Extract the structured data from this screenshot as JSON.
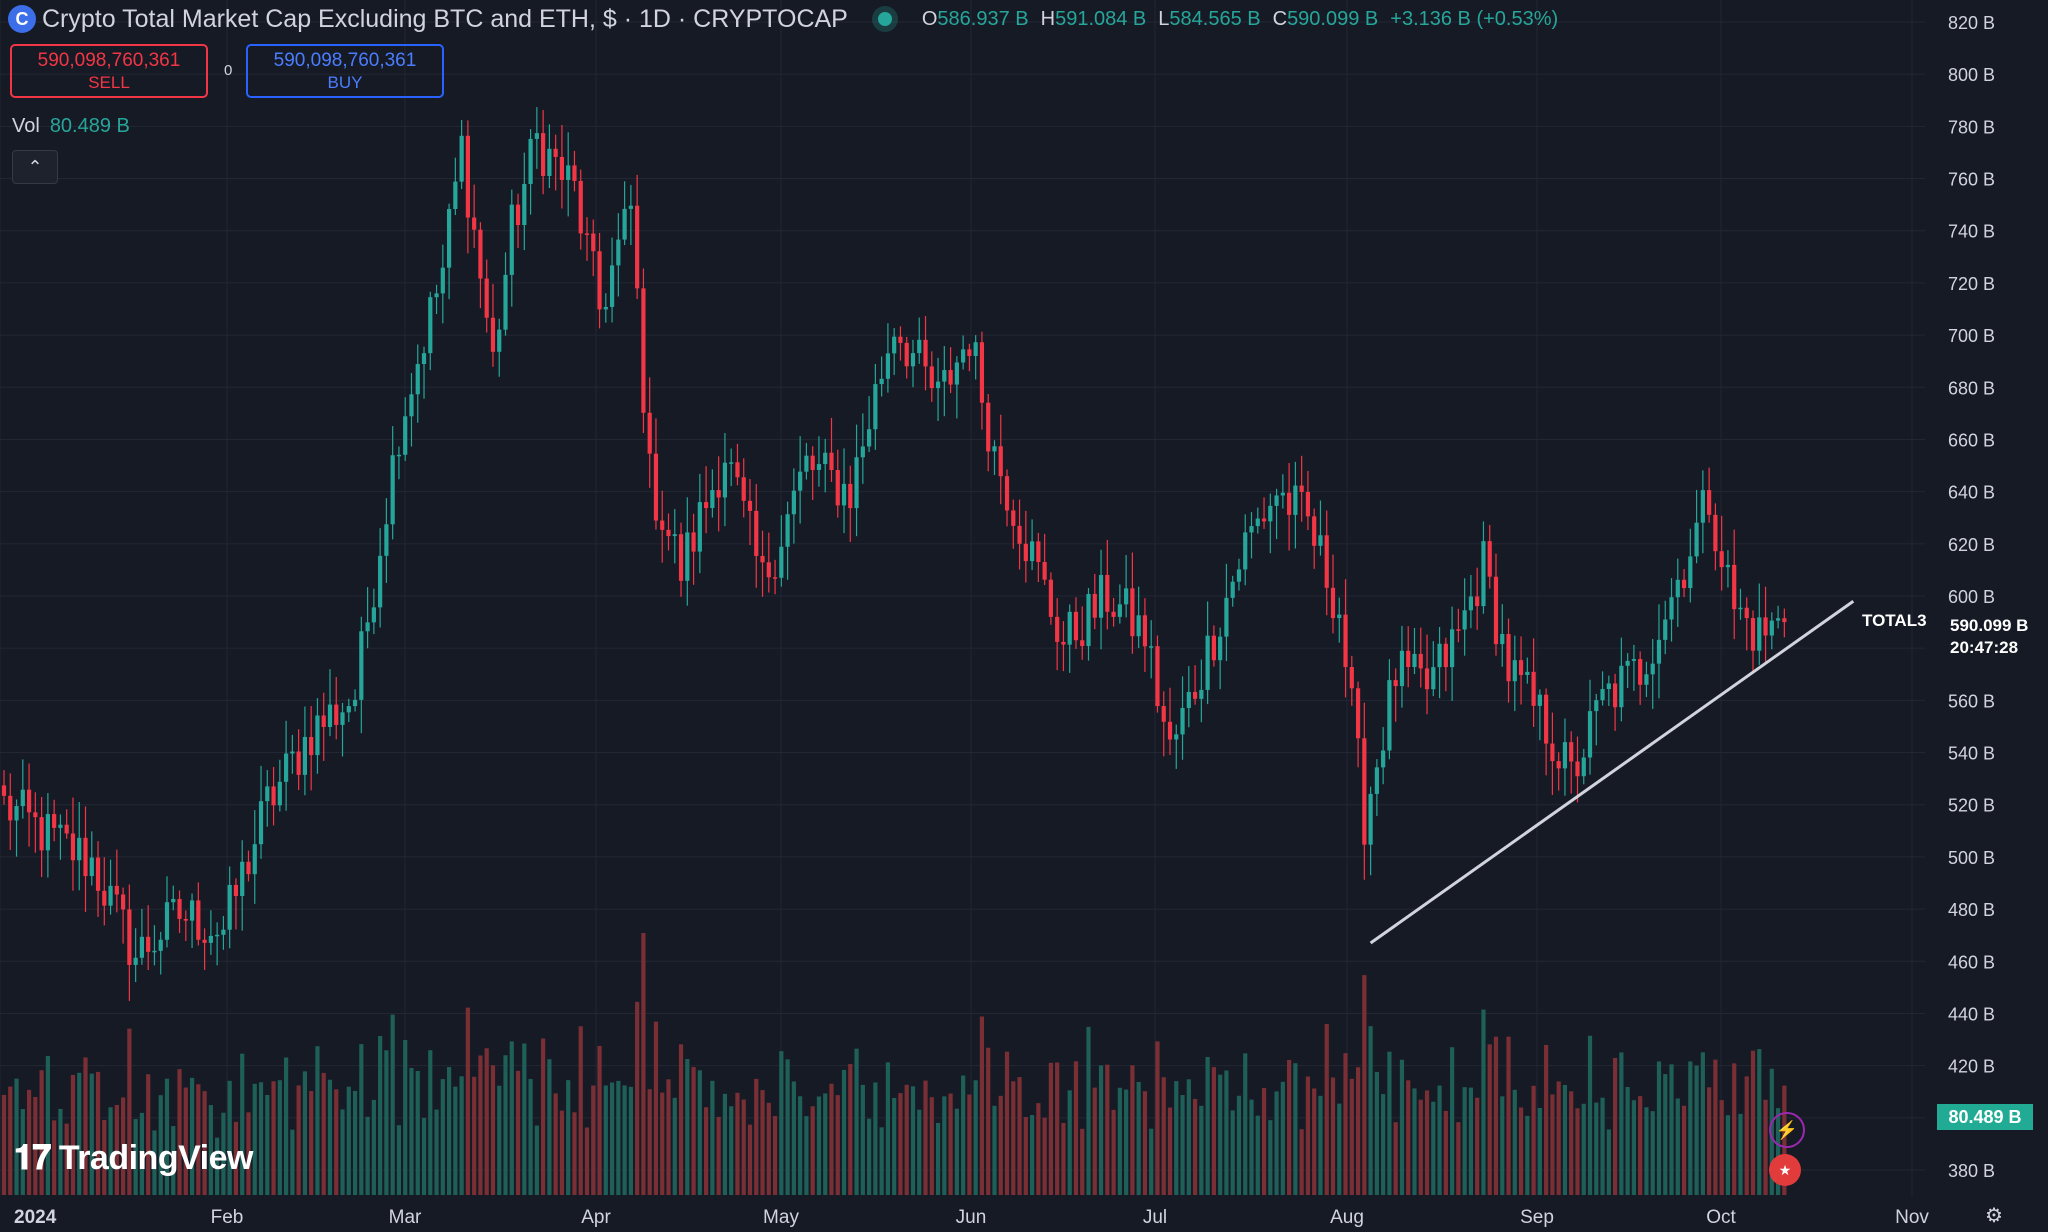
{
  "header": {
    "symbol_icon": "crypto-cap-icon",
    "title": "Crypto Total Market Cap Excluding BTC and ETH, $ · 1D · CRYPTOCAP",
    "ohlc": {
      "o_label": "O",
      "o_value": "586.937 B",
      "h_label": "H",
      "h_value": "591.084 B",
      "l_label": "L",
      "l_value": "584.565 B",
      "c_label": "C",
      "c_value": "590.099 B",
      "change": "+3.136 B (+0.53%)"
    }
  },
  "trade": {
    "sell_price": "590,098,760,361",
    "sell_label": "SELL",
    "spread": "0",
    "buy_price": "590,098,760,361",
    "buy_label": "BUY"
  },
  "volume_legend": {
    "label": "Vol",
    "value": "80.489 B"
  },
  "collapse_icon": "chevron-up-icon",
  "price_tag": {
    "value": "590.099 B",
    "countdown": "20:47:28"
  },
  "volume_tag": "80.489 B",
  "trendline_label": "TOTAL3",
  "logo_text": "TradingView",
  "colors": {
    "up": "#26a69a",
    "down": "#f23645",
    "background": "#161a25",
    "grid": "#232734",
    "trendline": "#d1d4dc"
  },
  "chart_data": {
    "type": "candlestick",
    "y_unit": "B",
    "ylim": [
      370,
      830
    ],
    "y_ticks": [
      "820 B",
      "800 B",
      "780 B",
      "760 B",
      "740 B",
      "720 B",
      "700 B",
      "680 B",
      "660 B",
      "640 B",
      "620 B",
      "600 B",
      "580 B",
      "560 B",
      "540 B",
      "520 B",
      "500 B",
      "480 B",
      "460 B",
      "440 B",
      "420 B",
      "400 B",
      "380 B"
    ],
    "x_labels": [
      "2024",
      "Feb",
      "Mar",
      "Apr",
      "May",
      "Jun",
      "Jul",
      "Aug",
      "Sep",
      "Oct",
      "Nov"
    ],
    "trendline": {
      "start": [
        "Aug 5",
        467
      ],
      "end": [
        "Oct 21",
        598
      ]
    },
    "daily_close_path": [
      {
        "date": "Jan 1",
        "close": 520
      },
      {
        "date": "Jan 8",
        "close": 508
      },
      {
        "date": "Jan 15",
        "close": 498
      },
      {
        "date": "Jan 22",
        "close": 462
      },
      {
        "date": "Jan 29",
        "close": 478
      },
      {
        "date": "Feb 5",
        "close": 472
      },
      {
        "date": "Feb 12",
        "close": 520
      },
      {
        "date": "Feb 19",
        "close": 548
      },
      {
        "date": "Feb 26",
        "close": 562
      },
      {
        "date": "Mar 4",
        "close": 665
      },
      {
        "date": "Mar 11",
        "close": 725
      },
      {
        "date": "Mar 14",
        "close": 772
      },
      {
        "date": "Mar 19",
        "close": 690
      },
      {
        "date": "Mar 22",
        "close": 740
      },
      {
        "date": "Mar 26",
        "close": 775
      },
      {
        "date": "Apr 1",
        "close": 755
      },
      {
        "date": "Apr 5",
        "close": 710
      },
      {
        "date": "Apr 10",
        "close": 748
      },
      {
        "date": "Apr 13",
        "close": 645
      },
      {
        "date": "Apr 18",
        "close": 610
      },
      {
        "date": "Apr 25",
        "close": 655
      },
      {
        "date": "May 1",
        "close": 605
      },
      {
        "date": "May 8",
        "close": 650
      },
      {
        "date": "May 15",
        "close": 640
      },
      {
        "date": "May 22",
        "close": 705
      },
      {
        "date": "May 29",
        "close": 675
      },
      {
        "date": "Jun 3",
        "close": 700
      },
      {
        "date": "Jun 7",
        "close": 655
      },
      {
        "date": "Jun 13",
        "close": 615
      },
      {
        "date": "Jun 18",
        "close": 582
      },
      {
        "date": "Jun 25",
        "close": 600
      },
      {
        "date": "Jul 1",
        "close": 585
      },
      {
        "date": "Jul 5",
        "close": 540
      },
      {
        "date": "Jul 10",
        "close": 572
      },
      {
        "date": "Jul 17",
        "close": 620
      },
      {
        "date": "Jul 22",
        "close": 640
      },
      {
        "date": "Jul 27",
        "close": 628
      },
      {
        "date": "Aug 1",
        "close": 595
      },
      {
        "date": "Aug 5",
        "close": 515
      },
      {
        "date": "Aug 10",
        "close": 570
      },
      {
        "date": "Aug 15",
        "close": 565
      },
      {
        "date": "Aug 20",
        "close": 585
      },
      {
        "date": "Aug 24",
        "close": 612
      },
      {
        "date": "Aug 28",
        "close": 572
      },
      {
        "date": "Sep 3",
        "close": 550
      },
      {
        "date": "Sep 7",
        "close": 530
      },
      {
        "date": "Sep 12",
        "close": 560
      },
      {
        "date": "Sep 18",
        "close": 572
      },
      {
        "date": "Sep 23",
        "close": 600
      },
      {
        "date": "Sep 29",
        "close": 638
      },
      {
        "date": "Oct 3",
        "close": 595
      },
      {
        "date": "Oct 7",
        "close": 585
      },
      {
        "date": "Oct 11",
        "close": 590
      }
    ]
  }
}
